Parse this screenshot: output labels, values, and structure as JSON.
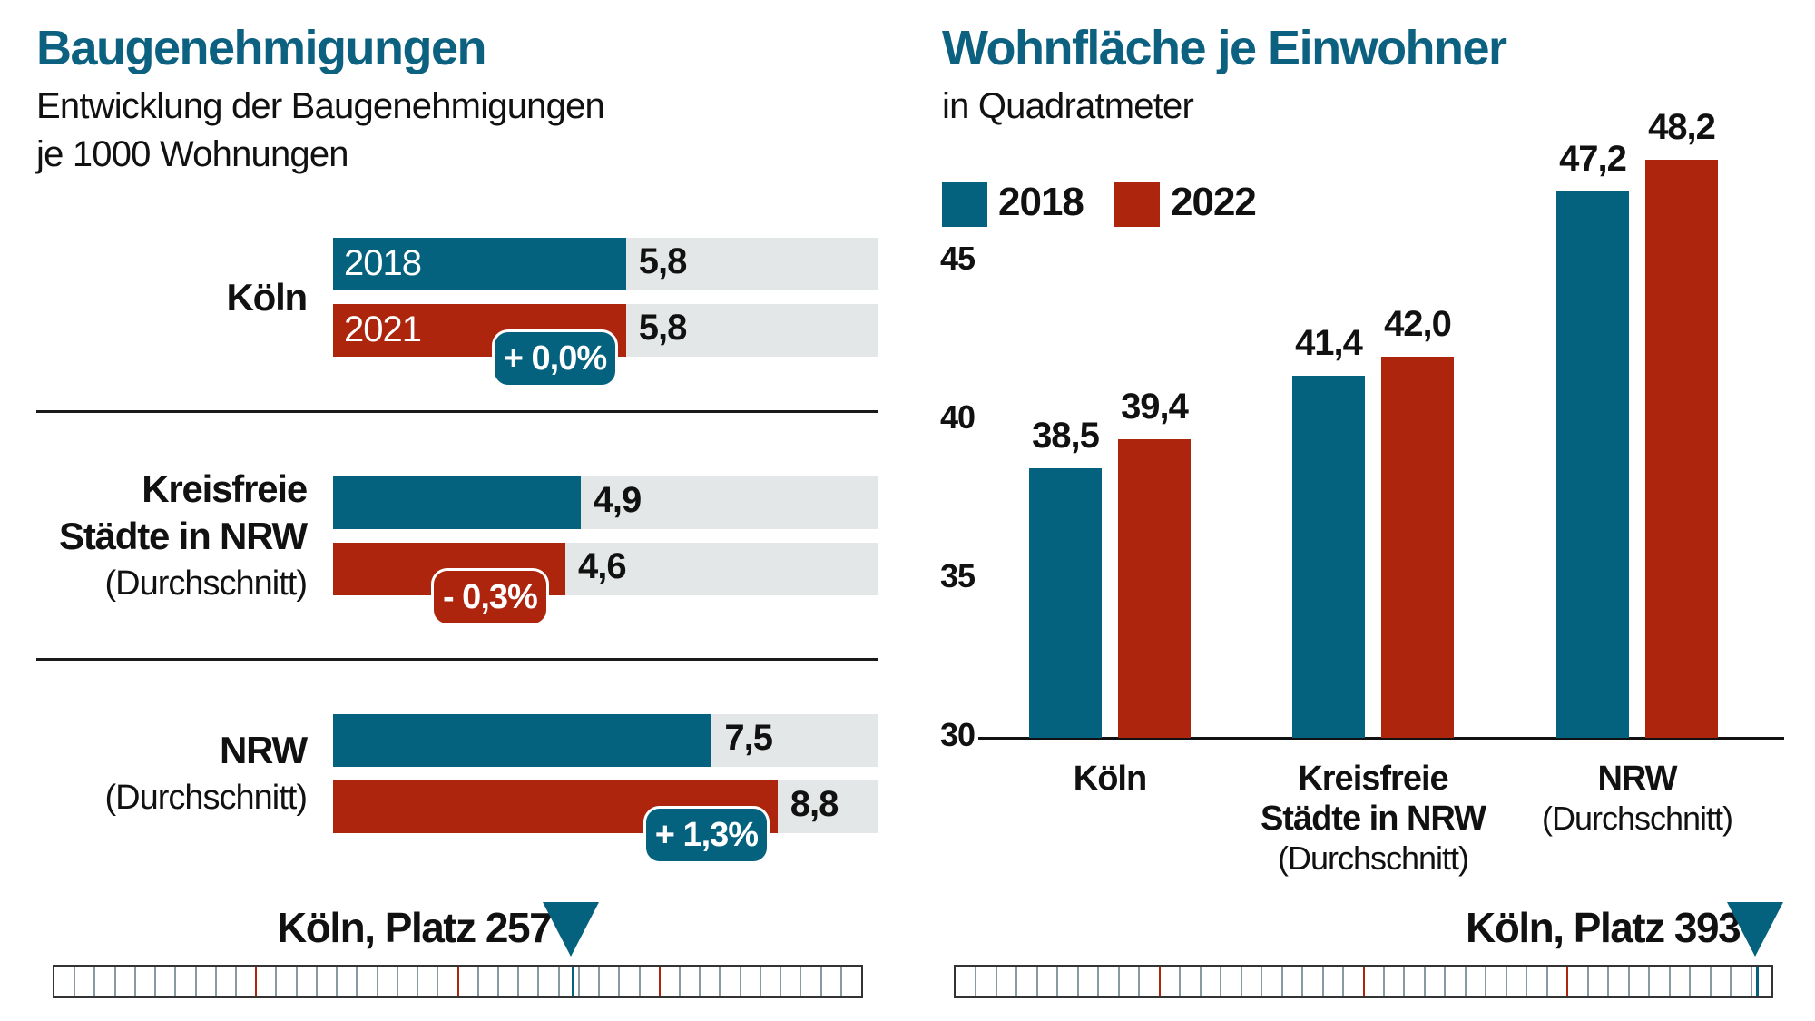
{
  "colors": {
    "primary_blue": "#04627f",
    "primary_red": "#ae250e",
    "track_grey": "#e4e7e7",
    "title_teal": "#0d6180",
    "tick_grey": "#8a9aa2"
  },
  "left": {
    "title": "Baugenehmigungen",
    "subtitle_line1": "Entwicklung der Baugenehmigungen",
    "subtitle_line2": "je 1000 Wohnungen",
    "rank_label": "Köln, Platz 257",
    "rank": 257
  },
  "right": {
    "title": "Wohnfläche je Einwohner",
    "subtitle": "in Quadratmeter",
    "legend": [
      {
        "label": "2018",
        "color": "#04627f"
      },
      {
        "label": "2022",
        "color": "#ae250e"
      }
    ],
    "rank_label": "Köln, Platz 393",
    "rank": 393
  },
  "rank_scale": {
    "total": 400,
    "segment": 10,
    "major_every": 100
  },
  "chart_data": [
    {
      "type": "bar",
      "orientation": "horizontal",
      "title": "Baugenehmigungen",
      "subtitle": "Entwicklung der Baugenehmigungen je 1000 Wohnungen",
      "xlim": [
        0,
        10.8
      ],
      "groups": [
        {
          "label_main": "Köln",
          "label_sub": "",
          "bars": [
            {
              "year": "2018",
              "value": 5.8,
              "value_label": "5,8",
              "show_year": true
            },
            {
              "year": "2021",
              "value": 5.8,
              "value_label": "5,8",
              "show_year": true
            }
          ],
          "change": {
            "label": "+ 0,0%",
            "direction": "up"
          }
        },
        {
          "label_main": "Kreisfreie|Städte in NRW",
          "label_sub": "(Durchschnitt)",
          "bars": [
            {
              "year": "2018",
              "value": 4.9,
              "value_label": "4,9",
              "show_year": false
            },
            {
              "year": "2021",
              "value": 4.6,
              "value_label": "4,6",
              "show_year": false
            }
          ],
          "change": {
            "label": "- 0,3%",
            "direction": "down"
          }
        },
        {
          "label_main": "NRW",
          "label_sub": "(Durchschnitt)",
          "bars": [
            {
              "year": "2018",
              "value": 7.5,
              "value_label": "7,5",
              "show_year": false
            },
            {
              "year": "2021",
              "value": 8.8,
              "value_label": "8,8",
              "show_year": false
            }
          ],
          "change": {
            "label": "+ 1,3%",
            "direction": "up"
          }
        }
      ]
    },
    {
      "type": "bar",
      "orientation": "vertical",
      "title": "Wohnfläche je Einwohner",
      "subtitle": "in Quadratmeter",
      "ylabel": "",
      "xlabel": "",
      "ylim": [
        30,
        48.2
      ],
      "yticks": [
        30,
        35,
        40,
        45
      ],
      "grid": false,
      "legend_position": "top-left",
      "categories": [
        {
          "main": "Köln",
          "sub": ""
        },
        {
          "main": "Kreisfreie|Städte in NRW",
          "sub": "(Durchschnitt)"
        },
        {
          "main": "NRW",
          "sub": "(Durchschnitt)"
        }
      ],
      "series": [
        {
          "name": "2018",
          "values": [
            38.5,
            41.4,
            47.2
          ],
          "labels": [
            "38,5",
            "41,4",
            "47,2"
          ]
        },
        {
          "name": "2022",
          "values": [
            39.4,
            42.0,
            48.2
          ],
          "labels": [
            "39,4",
            "42,0",
            "48,2"
          ]
        }
      ]
    }
  ]
}
